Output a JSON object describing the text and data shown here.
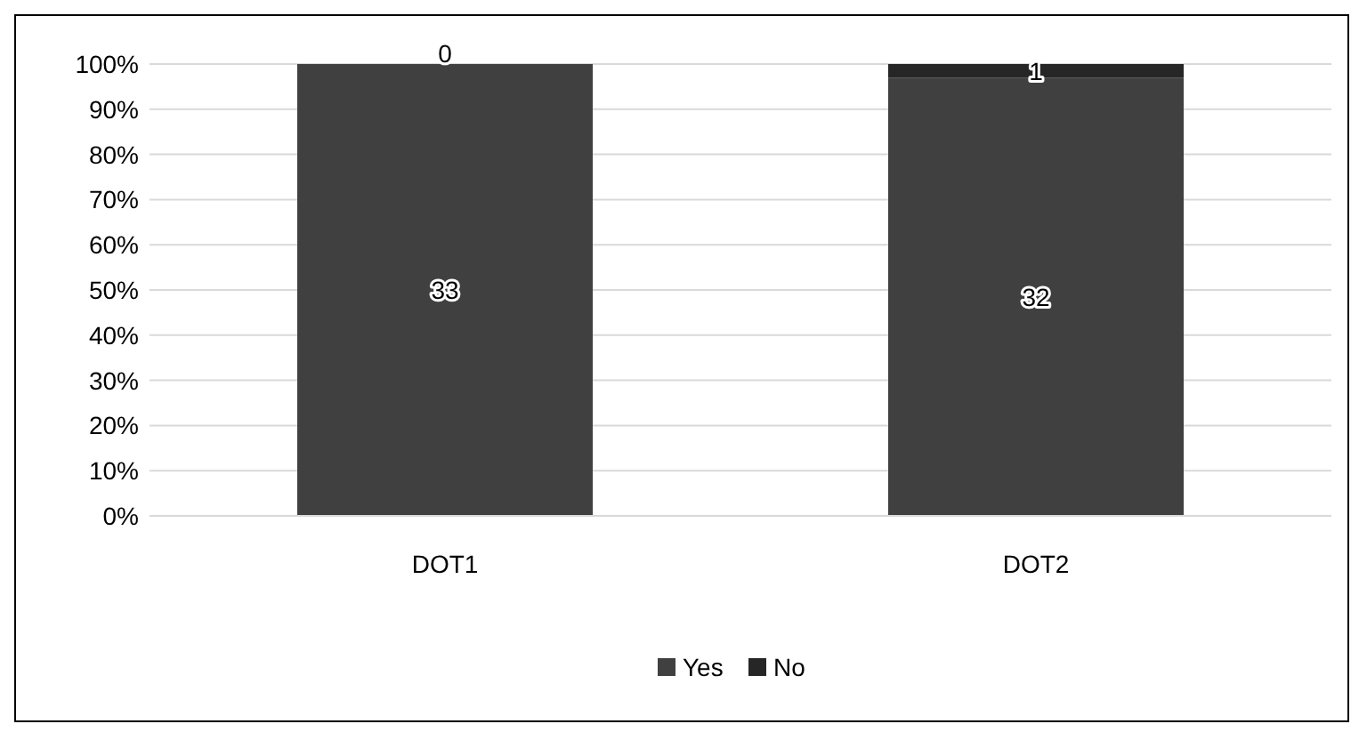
{
  "chart_data": {
    "type": "bar",
    "stacked": true,
    "categories": [
      "DOT1",
      "DOT2"
    ],
    "series": [
      {
        "name": "Yes",
        "color": "#404040",
        "values": [
          100,
          97
        ]
      },
      {
        "name": "No",
        "color": "#262626",
        "values": [
          0,
          3
        ]
      }
    ],
    "annotations": [
      "33",
      {
        "text": "0",
        "x": "DOT1",
        "y": 100
      },
      "32",
      {
        "text": "1",
        "x": "DOT2",
        "y": 100
      }
    ],
    "ylim": [
      0,
      100
    ],
    "yticks": [
      {
        "value": 0,
        "label": "0%"
      },
      {
        "value": 10,
        "label": "10%"
      },
      {
        "value": 20,
        "label": "20%"
      },
      {
        "value": 30,
        "label": "30%"
      },
      {
        "value": 40,
        "label": "40%"
      },
      {
        "value": 50,
        "label": "50%"
      },
      {
        "value": 60,
        "label": "60%"
      },
      {
        "value": 70,
        "label": "70%"
      },
      {
        "value": 80,
        "label": "80%"
      },
      {
        "value": 90,
        "label": "90%"
      },
      {
        "value": 100,
        "label": "100%"
      }
    ],
    "grid": "y",
    "legend": "bottom"
  }
}
